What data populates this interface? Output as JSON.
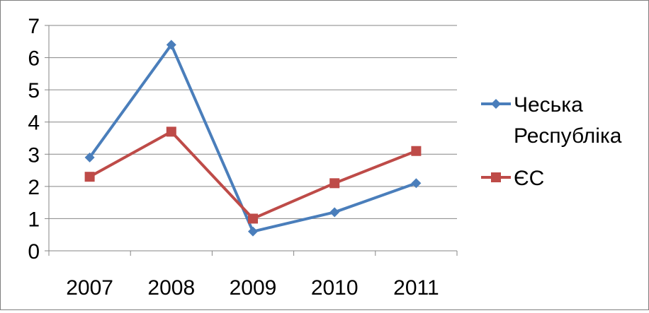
{
  "chart_data": {
    "type": "line",
    "title": "",
    "xlabel": "",
    "ylabel": "",
    "categories": [
      "2007",
      "2008",
      "2009",
      "2010",
      "2011"
    ],
    "ylim": [
      0,
      7
    ],
    "yticks": [
      0,
      1,
      2,
      3,
      4,
      5,
      6,
      7
    ],
    "grid": true,
    "legend_position": "right",
    "series": [
      {
        "name": "Чеська Республіка",
        "legend_lines": [
          "Чеська",
          "Республіка"
        ],
        "values": [
          2.9,
          6.4,
          0.6,
          1.2,
          2.1
        ],
        "color": "#4a7ebb",
        "marker": "diamond"
      },
      {
        "name": "ЄС",
        "legend_lines": [
          "ЄС"
        ],
        "values": [
          2.3,
          3.7,
          1.0,
          2.1,
          3.1
        ],
        "color": "#be4b48",
        "marker": "square"
      }
    ]
  }
}
